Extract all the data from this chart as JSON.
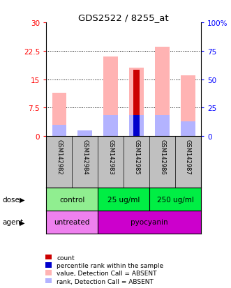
{
  "title": "GDS2522 / 8255_at",
  "samples": [
    "GSM142982",
    "GSM142984",
    "GSM142983",
    "GSM142985",
    "GSM142986",
    "GSM142987"
  ],
  "left_ylim": [
    0,
    30
  ],
  "right_ylim": [
    0,
    100
  ],
  "left_yticks": [
    0,
    7.5,
    15,
    22.5,
    30
  ],
  "right_yticks": [
    0,
    25,
    50,
    75,
    100
  ],
  "left_yticklabels": [
    "0",
    "7.5",
    "15",
    "22.5",
    "30"
  ],
  "right_yticklabels": [
    "0",
    "25",
    "50",
    "75",
    "100%"
  ],
  "pink_bar_heights": [
    11.5,
    1.5,
    21.0,
    18.0,
    23.5,
    16.0
  ],
  "lightblue_bar_heights": [
    3.0,
    1.5,
    5.5,
    5.5,
    5.5,
    4.0
  ],
  "red_bar_heights": [
    0,
    0,
    0,
    17.5,
    0,
    0
  ],
  "blue_bar_heights": [
    0,
    0,
    0,
    5.5,
    0,
    0
  ],
  "dose_groups": [
    {
      "label": "control",
      "start": 0,
      "end": 2,
      "color": "#90ee90"
    },
    {
      "label": "25 ug/ml",
      "start": 2,
      "end": 4,
      "color": "#00ee44"
    },
    {
      "label": "250 ug/ml",
      "start": 4,
      "end": 6,
      "color": "#00ee44"
    }
  ],
  "agent_groups": [
    {
      "label": "untreated",
      "start": 0,
      "end": 2,
      "color": "#ee80ee"
    },
    {
      "label": "pyocyanin",
      "start": 2,
      "end": 6,
      "color": "#cc00cc"
    }
  ],
  "color_pink": "#ffb3b3",
  "color_lightblue": "#b3b3ff",
  "color_red": "#cc0000",
  "color_blue": "#0000cc",
  "color_sample_bg": "#c0c0c0",
  "legend_items": [
    {
      "label": "count",
      "color": "#cc0000"
    },
    {
      "label": "percentile rank within the sample",
      "color": "#0000cc"
    },
    {
      "label": "value, Detection Call = ABSENT",
      "color": "#ffb3b3"
    },
    {
      "label": "rank, Detection Call = ABSENT",
      "color": "#b3b3ff"
    }
  ]
}
